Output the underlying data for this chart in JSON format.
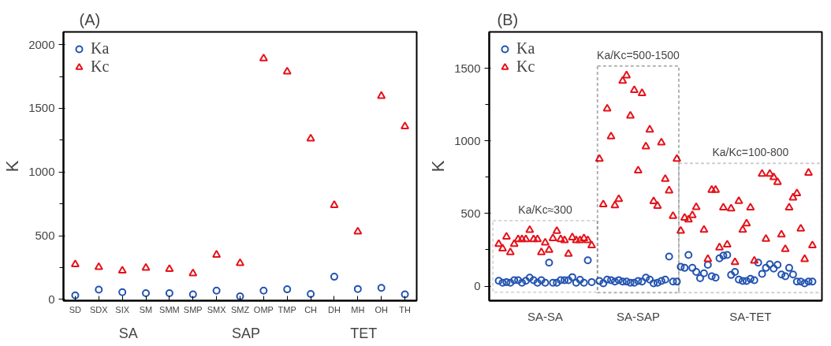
{
  "chart_data": [
    {
      "type": "scatter",
      "title": "(A)",
      "ylabel": "K",
      "categories": [
        "SD",
        "SDX",
        "SIX",
        "SM",
        "SMM",
        "SMP",
        "SMX",
        "SMZ",
        "OMP",
        "TMP",
        "CH",
        "DH",
        "MH",
        "OH",
        "TH"
      ],
      "series": [
        {
          "name": "Ka",
          "color": "#2353b0",
          "marker": "circle",
          "values": [
            32,
            77,
            56,
            49,
            49,
            39,
            69,
            24,
            69,
            79,
            43,
            178,
            82,
            90,
            39
          ]
        },
        {
          "name": "Kc",
          "color": "#e5121b",
          "marker": "triangle",
          "values": [
            275,
            253,
            225,
            247,
            238,
            204,
            350,
            285,
            1891,
            1788,
            1262,
            740,
            532,
            1597,
            1358
          ]
        }
      ],
      "ylim": [
        -10,
        2100
      ],
      "yticks": [
        0,
        {
          "value": 250,
          "label": null
        },
        500,
        {
          "value": 750,
          "label": null
        },
        1000,
        {
          "value": 1250,
          "label": null
        },
        1500,
        {
          "value": 1750,
          "label": null
        },
        2000
      ],
      "annotations": [
        "SA",
        "SAP",
        "TET"
      ],
      "legend": "top left",
      "grid": false
    },
    {
      "type": "scatter",
      "title": "(B)",
      "ylabel": "K",
      "categories": [
        null,
        null,
        null,
        null,
        null,
        null,
        null,
        null,
        null,
        null,
        null,
        null,
        "SA-SA",
        null,
        null,
        null,
        null,
        null,
        null,
        null,
        null,
        null,
        null,
        null,
        null,
        null,
        null,
        null,
        null,
        null,
        null,
        null,
        null,
        null,
        null,
        null,
        "SA-SAP",
        null,
        null,
        null,
        null,
        null,
        null,
        null,
        null,
        null,
        null,
        null,
        null,
        null,
        null,
        null,
        null,
        null,
        null,
        null,
        null,
        null,
        null,
        null,
        null,
        null,
        null,
        null,
        null,
        "SA-TET",
        null,
        null,
        null,
        null,
        null,
        null,
        null,
        null,
        null,
        null,
        null,
        null,
        null,
        null,
        null,
        null
      ],
      "series": [
        {
          "name": "Ka",
          "color": "#2353b0",
          "marker": "circle",
          "values": [
            37,
            23,
            28,
            23,
            41,
            41,
            23,
            37,
            59,
            41,
            23,
            41,
            23,
            162,
            23,
            23,
            41,
            41,
            41,
            62,
            23,
            44,
            23,
            178,
            28,
            null,
            36,
            20,
            45,
            41,
            32,
            41,
            32,
            32,
            23,
            23,
            36,
            32,
            59,
            45,
            20,
            23,
            36,
            45,
            204,
            32,
            32,
            133,
            126,
            215,
            126,
            98,
            55,
            89,
            147,
            68,
            59,
            192,
            210,
            215,
            77,
            98,
            45,
            36,
            36,
            50,
            41,
            162,
            85,
            126,
            151,
            121,
            147,
            80,
            68,
            126,
            80,
            32,
            32,
            20,
            32,
            32
          ]
        },
        {
          "name": "Kc",
          "color": "#e5121b",
          "marker": "triangle",
          "values": [
            290,
            258,
            340,
            233,
            290,
            322,
            322,
            322,
            386,
            322,
            322,
            233,
            299,
            249,
            329,
            379,
            322,
            315,
            222,
            335,
            315,
            315,
            329,
            315,
            280,
            null,
            876,
            562,
            1221,
            1030,
            556,
            599,
            1413,
            1450,
            1173,
            1349,
            796,
            1328,
            961,
            1077,
            584,
            552,
            988,
            737,
            658,
            482,
            876,
            381,
            470,
            458,
            488,
            543,
            null,
            387,
            186,
            662,
            662,
            266,
            541,
            286,
            534,
            165,
            585,
            387,
            431,
            541,
            174,
            null,
            772,
            325,
            772,
            750,
            715,
            355,
            254,
            541,
            609,
            638,
            396,
            186,
            780,
            280
          ]
        }
      ],
      "ylim": [
        -100,
        1750
      ],
      "yticks": [
        0,
        {
          "value": 250,
          "label": null
        },
        500,
        {
          "value": 750,
          "label": null
        },
        1000,
        {
          "value": 1250,
          "label": null
        },
        1500
      ],
      "annotations": [
        "Ka/Kc≈300",
        "Ka/Kc=500-1500",
        "Ka/Kc=100-800"
      ],
      "legend": "top left",
      "grid": false
    }
  ]
}
